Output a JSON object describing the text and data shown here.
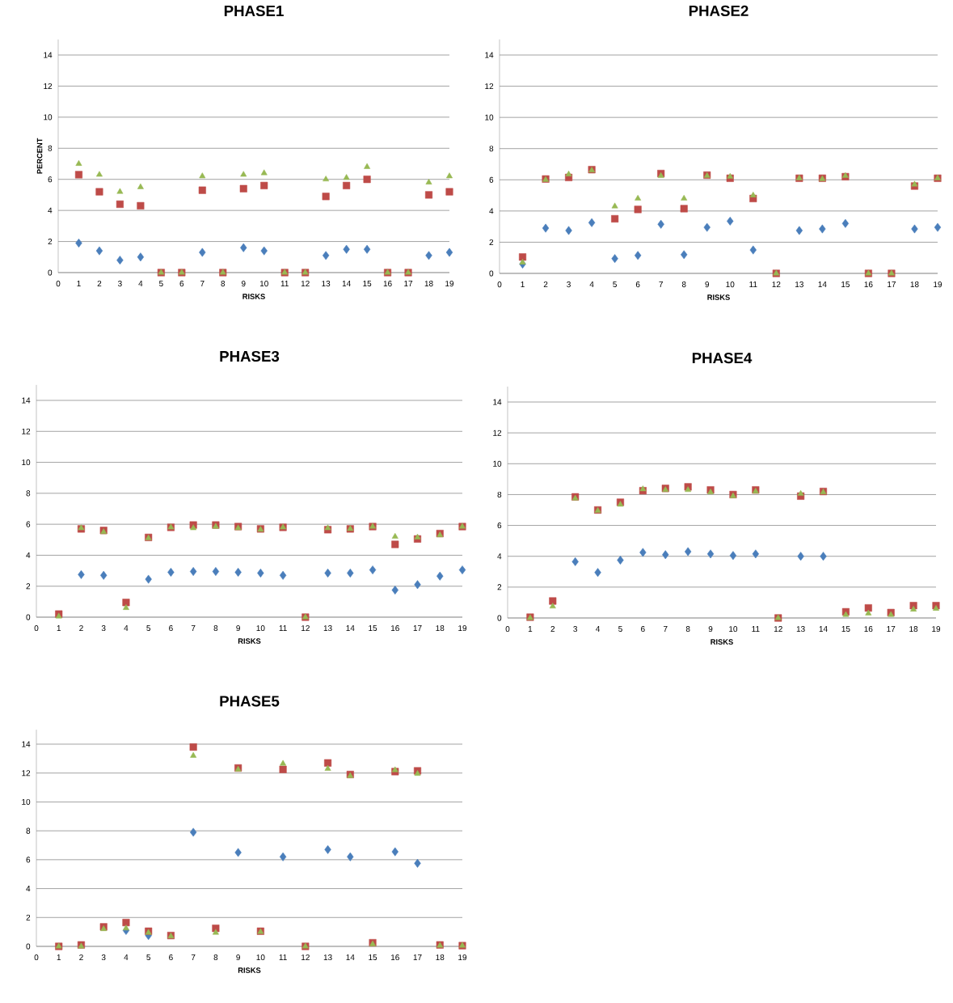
{
  "chart_data": [
    {
      "type": "scatter",
      "title": "PHASE1",
      "xlabel": "RISKS",
      "ylabel": "PERCENT",
      "x": [
        1,
        2,
        3,
        4,
        5,
        6,
        7,
        8,
        9,
        10,
        11,
        12,
        13,
        14,
        15,
        16,
        17,
        18,
        19
      ],
      "xlim": [
        0,
        19
      ],
      "xticks": [
        0,
        1,
        2,
        3,
        4,
        5,
        6,
        7,
        8,
        9,
        10,
        11,
        12,
        13,
        14,
        15,
        16,
        17,
        18,
        19
      ],
      "ylim": [
        0,
        15
      ],
      "yticks": [
        0,
        2,
        4,
        6,
        8,
        10,
        12,
        14
      ],
      "grid": "y",
      "series": [
        {
          "color": "#4a7ebb",
          "marker": "diamond",
          "values": [
            1.9,
            1.4,
            0.8,
            1.0,
            null,
            null,
            1.3,
            null,
            1.6,
            1.4,
            null,
            null,
            1.1,
            1.5,
            1.5,
            null,
            null,
            1.1,
            1.3
          ]
        },
        {
          "color": "#be4b48",
          "marker": "square",
          "values": [
            6.3,
            5.2,
            4.4,
            4.3,
            0,
            0,
            5.3,
            0,
            5.4,
            5.6,
            0,
            0,
            4.9,
            5.6,
            6.0,
            0,
            0,
            5.0,
            5.2
          ]
        },
        {
          "color": "#98b954",
          "marker": "triangle",
          "values": [
            7.0,
            6.3,
            5.2,
            5.5,
            0,
            0,
            6.2,
            0,
            6.3,
            6.4,
            0,
            0,
            6.0,
            6.1,
            6.8,
            0,
            0,
            5.8,
            6.2
          ]
        }
      ]
    },
    {
      "type": "scatter",
      "title": "PHASE2",
      "xlabel": "RISKS",
      "x": [
        1,
        2,
        3,
        4,
        5,
        6,
        7,
        8,
        9,
        10,
        11,
        12,
        13,
        14,
        15,
        16,
        17,
        18,
        19
      ],
      "xlim": [
        0,
        19
      ],
      "xticks": [
        0,
        1,
        2,
        3,
        4,
        5,
        6,
        7,
        8,
        9,
        10,
        11,
        12,
        13,
        14,
        15,
        16,
        17,
        18,
        19
      ],
      "ylim": [
        0,
        15
      ],
      "yticks": [
        0,
        2,
        4,
        6,
        8,
        10,
        12,
        14
      ],
      "grid": "y",
      "series": [
        {
          "color": "#4a7ebb",
          "marker": "diamond",
          "values": [
            0.6,
            2.9,
            2.75,
            3.25,
            0.95,
            1.15,
            3.15,
            1.2,
            2.95,
            3.35,
            1.5,
            null,
            2.75,
            2.85,
            3.2,
            null,
            null,
            2.85,
            2.95
          ]
        },
        {
          "color": "#be4b48",
          "marker": "square",
          "values": [
            1.05,
            6.05,
            6.15,
            6.65,
            3.5,
            4.1,
            6.4,
            4.15,
            6.3,
            6.1,
            4.8,
            0,
            6.1,
            6.1,
            6.2,
            0,
            0,
            5.6,
            6.1
          ]
        },
        {
          "color": "#98b954",
          "marker": "triangle",
          "values": [
            0.7,
            6.0,
            6.35,
            6.6,
            4.3,
            4.8,
            6.25,
            4.8,
            6.25,
            6.2,
            5.0,
            0,
            6.1,
            6.05,
            6.25,
            0,
            0,
            5.7,
            6.1
          ]
        }
      ]
    },
    {
      "type": "scatter",
      "title": "PHASE3",
      "xlabel": "RISKS",
      "x": [
        1,
        2,
        3,
        4,
        5,
        6,
        7,
        8,
        9,
        10,
        11,
        12,
        13,
        14,
        15,
        16,
        17,
        18,
        19
      ],
      "xlim": [
        0,
        19
      ],
      "xticks": [
        0,
        1,
        2,
        3,
        4,
        5,
        6,
        7,
        8,
        9,
        10,
        11,
        12,
        13,
        14,
        15,
        16,
        17,
        18,
        19
      ],
      "ylim": [
        0,
        15
      ],
      "yticks": [
        0,
        2,
        4,
        6,
        8,
        10,
        12,
        14
      ],
      "grid": "y",
      "series": [
        {
          "color": "#4a7ebb",
          "marker": "diamond",
          "values": [
            null,
            2.75,
            2.7,
            null,
            2.45,
            2.9,
            2.95,
            2.95,
            2.9,
            2.85,
            2.7,
            null,
            2.85,
            2.85,
            3.05,
            1.75,
            2.1,
            2.65,
            3.05
          ]
        },
        {
          "color": "#be4b48",
          "marker": "square",
          "values": [
            0.2,
            5.7,
            5.6,
            0.95,
            5.15,
            5.8,
            5.95,
            5.95,
            5.85,
            5.7,
            5.8,
            0,
            5.65,
            5.7,
            5.85,
            4.7,
            5.05,
            5.4,
            5.85
          ]
        },
        {
          "color": "#98b954",
          "marker": "triangle",
          "values": [
            0.05,
            5.75,
            5.5,
            0.6,
            5.1,
            5.8,
            5.75,
            5.85,
            5.75,
            5.65,
            5.8,
            0,
            5.75,
            5.7,
            5.85,
            5.2,
            5.15,
            5.3,
            5.85
          ]
        }
      ]
    },
    {
      "type": "scatter",
      "title": "PHASE4",
      "xlabel": "RISKS",
      "x": [
        1,
        2,
        3,
        4,
        5,
        6,
        7,
        8,
        9,
        10,
        11,
        12,
        13,
        14,
        15,
        16,
        17,
        18,
        19
      ],
      "xlim": [
        0,
        19
      ],
      "xticks": [
        0,
        1,
        2,
        3,
        4,
        5,
        6,
        7,
        8,
        9,
        10,
        11,
        12,
        13,
        14,
        15,
        16,
        17,
        18,
        19
      ],
      "ylim": [
        0,
        15
      ],
      "yticks": [
        0,
        2,
        4,
        6,
        8,
        10,
        12,
        14
      ],
      "grid": "y",
      "series": [
        {
          "color": "#4a7ebb",
          "marker": "diamond",
          "values": [
            null,
            null,
            3.65,
            2.95,
            3.75,
            4.25,
            4.1,
            4.3,
            4.15,
            4.05,
            4.15,
            null,
            4.0,
            4.0,
            null,
            null,
            null,
            null,
            null
          ]
        },
        {
          "color": "#be4b48",
          "marker": "square",
          "values": [
            0.05,
            1.1,
            7.85,
            7.0,
            7.5,
            8.25,
            8.4,
            8.5,
            8.3,
            8.0,
            8.3,
            0,
            7.9,
            8.2,
            0.4,
            0.65,
            0.35,
            0.8,
            0.8
          ]
        },
        {
          "color": "#98b954",
          "marker": "triangle",
          "values": [
            0,
            0.75,
            7.75,
            6.95,
            7.35,
            8.35,
            8.3,
            8.3,
            8.15,
            7.9,
            8.2,
            0,
            8.05,
            8.15,
            0.2,
            0.3,
            0.2,
            0.55,
            0.6
          ]
        }
      ]
    },
    {
      "type": "scatter",
      "title": "PHASE5",
      "xlabel": "RISKS",
      "x": [
        1,
        2,
        3,
        4,
        5,
        6,
        7,
        8,
        9,
        10,
        11,
        12,
        13,
        14,
        15,
        16,
        17,
        18,
        19
      ],
      "xlim": [
        0,
        19
      ],
      "xticks": [
        0,
        1,
        2,
        3,
        4,
        5,
        6,
        7,
        8,
        9,
        10,
        11,
        12,
        13,
        14,
        15,
        16,
        17,
        18,
        19
      ],
      "ylim": [
        0,
        15
      ],
      "yticks": [
        0,
        2,
        4,
        6,
        8,
        10,
        12,
        14
      ],
      "grid": "y",
      "series": [
        {
          "color": "#4a7ebb",
          "marker": "diamond",
          "values": [
            null,
            null,
            null,
            1.1,
            0.75,
            null,
            7.9,
            null,
            6.5,
            null,
            6.2,
            null,
            6.7,
            6.2,
            null,
            6.55,
            5.75,
            null,
            null
          ]
        },
        {
          "color": "#be4b48",
          "marker": "square",
          "values": [
            0,
            0.1,
            1.35,
            1.65,
            1.05,
            0.75,
            13.8,
            1.25,
            12.35,
            1.05,
            12.25,
            0,
            12.7,
            11.9,
            0.25,
            12.1,
            12.15,
            0.1,
            0.05
          ]
        },
        {
          "color": "#98b954",
          "marker": "triangle",
          "values": [
            0,
            0,
            1.2,
            1.25,
            0.95,
            0.7,
            13.2,
            0.95,
            12.25,
            1.0,
            12.65,
            0,
            12.3,
            11.8,
            0.15,
            12.2,
            11.95,
            0.05,
            0.05
          ]
        }
      ]
    }
  ]
}
